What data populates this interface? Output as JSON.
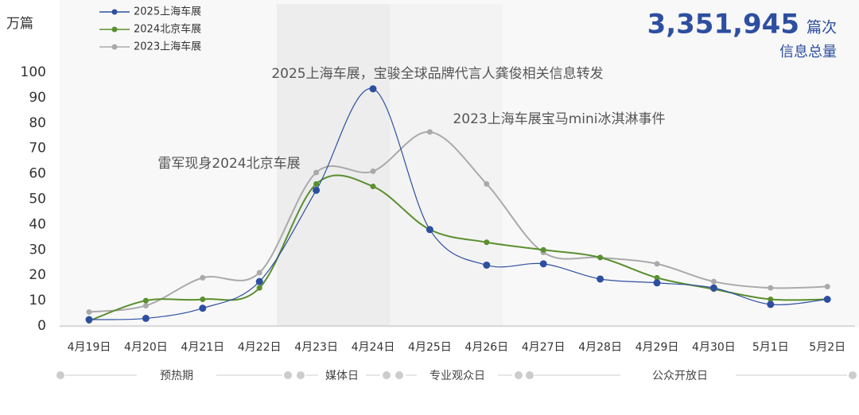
{
  "chart_data": {
    "type": "line",
    "y_label": "万篇",
    "total_value": "3,351,945",
    "total_unit": "篇次",
    "total_label": "信息总量",
    "categories": [
      "4月19日",
      "4月20日",
      "4月21日",
      "4月22日",
      "4月23日",
      "4月24日",
      "4月25日",
      "4月26日",
      "4月27日",
      "4月28日",
      "4月29日",
      "4月30日",
      "5月1日",
      "5月2日"
    ],
    "series": [
      {
        "name": "2025上海车展",
        "color": "#2e4fa0",
        "values": [
          2.5,
          3,
          7,
          17.5,
          53.5,
          93.5,
          38,
          24,
          24.5,
          18.5,
          17,
          15,
          8.5,
          10.5
        ]
      },
      {
        "name": "2024北京车展",
        "color": "#5a8f2e",
        "values": [
          2,
          10,
          10.5,
          15,
          56,
          55,
          38,
          33,
          30,
          27,
          19,
          14.5,
          10.5,
          10.5
        ]
      },
      {
        "name": "2023上海车展",
        "color": "#aaaaaa",
        "values": [
          5.5,
          8,
          19,
          21,
          60.5,
          61,
          76.5,
          56,
          29,
          27,
          24.5,
          17.5,
          15,
          15.5
        ]
      }
    ],
    "ylim": [
      0,
      100
    ],
    "yticks": [
      0,
      10,
      20,
      30,
      40,
      50,
      60,
      70,
      80,
      90,
      100
    ],
    "annotations": [
      "2025上海车展，宝骏全球品牌代言人龚俊相关信息转发",
      "2023上海车展宝马mini冰淇淋事件",
      "雷军现身2024北京车展"
    ],
    "phases": [
      "预热期",
      "媒体日",
      "专业观众日",
      "公众开放日"
    ]
  }
}
